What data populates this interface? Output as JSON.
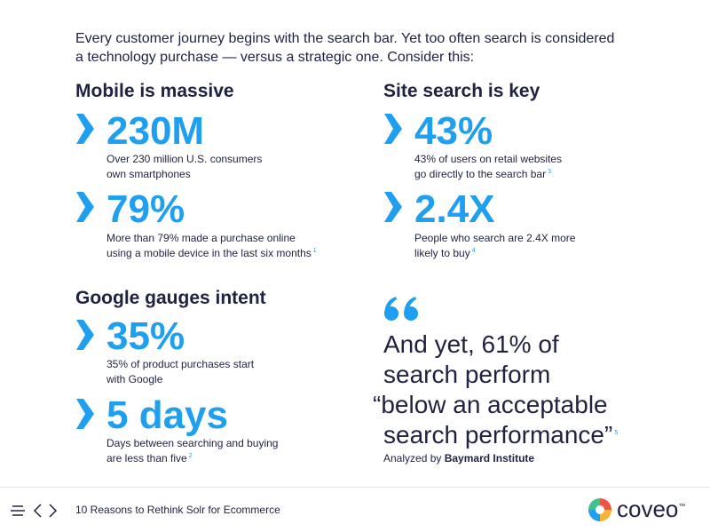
{
  "intro": [
    "Every customer journey begins with the search bar. Yet too often search is considered",
    "a technology purchase — versus a strategic one. Consider this:"
  ],
  "sections": [
    {
      "heading": "Mobile is massive",
      "stats": [
        {
          "value": "230M",
          "description": [
            "Over 230 million U.S. consumers",
            "own smartphones"
          ]
        },
        {
          "value": "79%",
          "description": [
            "More than 79% made a purchase online",
            "using a mobile device in the last six months"
          ],
          "footnote": "1"
        }
      ]
    },
    {
      "heading": "Site search is key",
      "stats": [
        {
          "value": "43%",
          "description": [
            "43% of users on retail websites",
            "go directly to the search bar"
          ],
          "footnote": "3"
        },
        {
          "value": "2.4X",
          "description": [
            "People who search are 2.4X more",
            "likely to buy"
          ],
          "footnote": "4"
        }
      ]
    },
    {
      "heading": "Google gauges intent",
      "stats": [
        {
          "value": "35%",
          "description": [
            "35% of product purchases start",
            "with Google"
          ]
        },
        {
          "value": "5 days",
          "description": [
            "Days between searching and buying",
            "are less than five"
          ],
          "footnote": "2"
        }
      ]
    }
  ],
  "quote": {
    "lines": [
      "And yet, 61% of",
      "search perform",
      "“below an acceptable",
      "search performance”"
    ],
    "footnote": "5",
    "attribution_prefix": "Analyzed by",
    "attribution_source": "Baymard Institute"
  },
  "footer": {
    "title": "10 Reasons to Rethink Solr for Ecommerce",
    "logo": "coveo",
    "trademark": "™"
  }
}
